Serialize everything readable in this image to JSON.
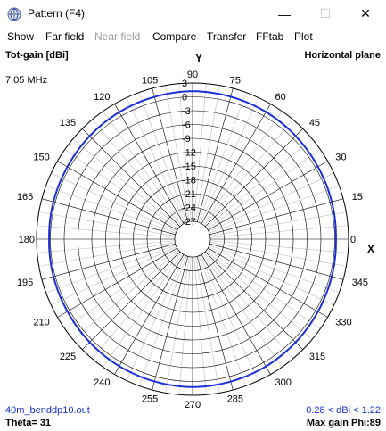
{
  "window": {
    "title": "Pattern   (F4)",
    "minimize_label": "—",
    "maximize_label": "☐",
    "close_label": "✕"
  },
  "menu": {
    "items": [
      {
        "label": "Show",
        "enabled": true
      },
      {
        "label": "Far field",
        "enabled": true
      },
      {
        "label": "Near field",
        "enabled": false
      },
      {
        "label": "Compare",
        "enabled": true
      },
      {
        "label": "Transfer",
        "enabled": true
      },
      {
        "label": "FFtab",
        "enabled": true
      },
      {
        "label": "Plot",
        "enabled": true
      }
    ]
  },
  "plot": {
    "gain_label": "Tot-gain [dBi]",
    "plane_label": "Horizontal plane",
    "frequency": "7.05 MHz",
    "y_axis_label": "Y",
    "x_axis_label": "X",
    "file_name": "40m_benddp10.out",
    "range_text": "0.28 < dBi < 1.22",
    "theta_text": "Theta= 31",
    "max_gain_text": "Max gain Phi:89",
    "colors": {
      "trace": "#1a2fd6",
      "grid": "#000000",
      "minor_grid": "#c0c0c0"
    }
  },
  "chart_data": {
    "type": "polar",
    "radial_ticks_db": [
      3,
      0,
      -3,
      -6,
      -9,
      -12,
      -15,
      -18,
      -21,
      -24,
      -27
    ],
    "radial_tick_labels": [
      "3",
      "0",
      "-3",
      "-6",
      "-9",
      "-12",
      "-15",
      "-18",
      "-21",
      "-24",
      "-27"
    ],
    "angle_labels_deg": [
      0,
      15,
      30,
      45,
      60,
      75,
      90,
      105,
      120,
      135,
      150,
      165,
      180,
      195,
      210,
      225,
      240,
      255,
      270,
      285,
      300,
      315,
      330,
      345
    ],
    "radial_range_db": [
      -27,
      3
    ],
    "series": [
      {
        "phi_deg": [
          0,
          30,
          60,
          89,
          120,
          150,
          180,
          210,
          240,
          270,
          300,
          330,
          360
        ],
        "gain_dbi": [
          0.28,
          0.55,
          1.0,
          1.22,
          0.95,
          0.5,
          0.28,
          0.5,
          0.95,
          1.22,
          1.0,
          0.55,
          0.28
        ]
      }
    ]
  }
}
